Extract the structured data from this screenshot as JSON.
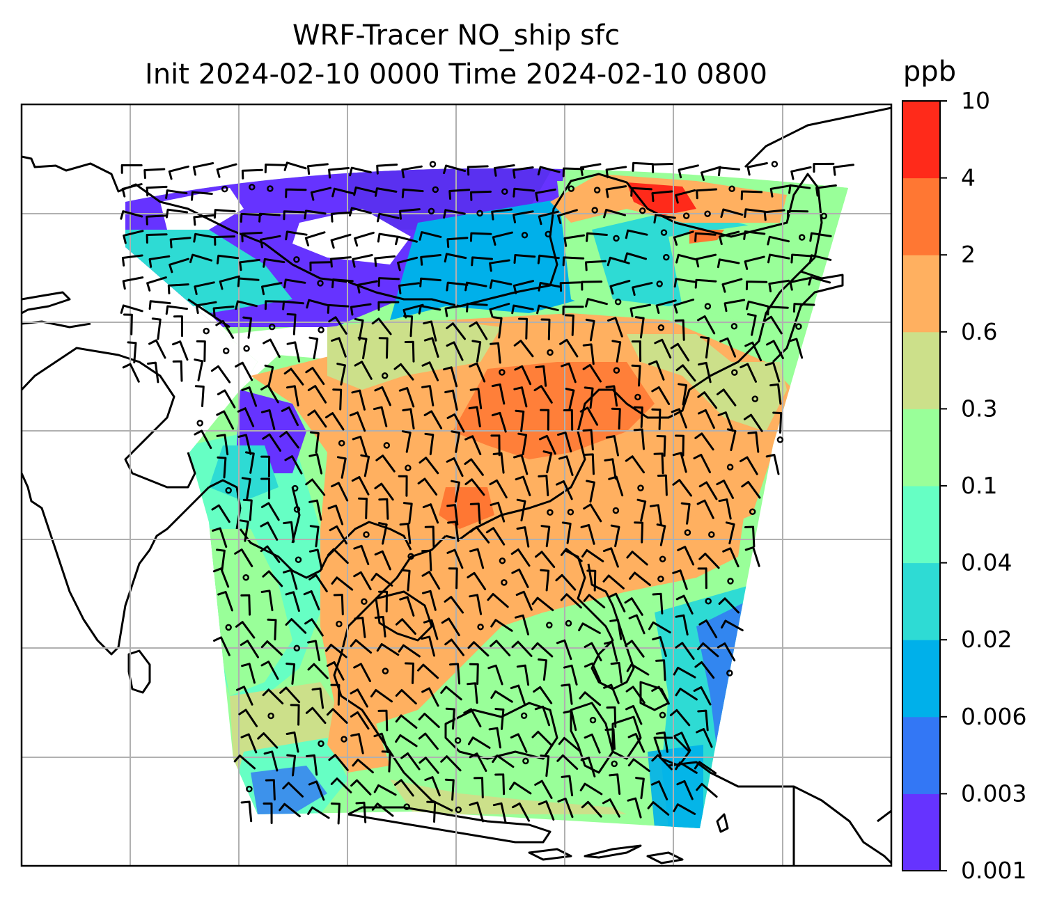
{
  "title": "WRF-Tracer NO_ship sfc",
  "subtitle": "Init 2024-02-10 0000 Time 2024-02-10 0800",
  "colorbar": {
    "unit": "ppb",
    "levels": [
      "0.001",
      "0.003",
      "0.006",
      "0.02",
      "0.04",
      "0.1",
      "0.3",
      "0.6",
      "2",
      "4",
      "10"
    ],
    "colors": [
      "#6633ff",
      "#3377f5",
      "#00b0ea",
      "#2edbd4",
      "#66ffc4",
      "#99ff99",
      "#cce08a",
      "#ffb060",
      "#ff7733",
      "#ff2a1a"
    ]
  },
  "map": {
    "graticule": true,
    "coastline_color": "#000000",
    "wind_barbs_color": "#000000"
  }
}
